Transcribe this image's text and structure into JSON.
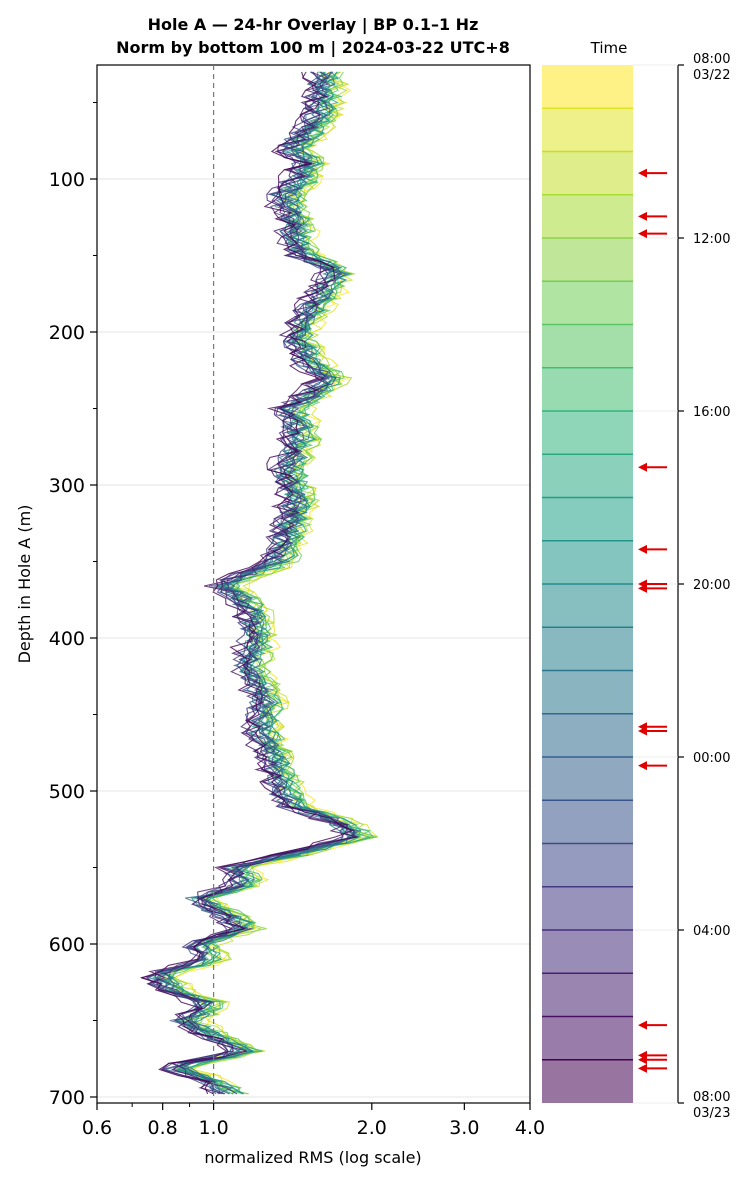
{
  "chart_data": {
    "type": "line",
    "title_line1": "Hole A — 24-hr Overlay  |  BP 0.1–1 Hz",
    "title_line2": "Norm by bottom 100 m  |  2024-03-22 UTC+8",
    "xlabel": "normalized RMS  (log scale)",
    "ylabel": "Depth in Hole A (m)",
    "x_scale": "log",
    "xlim": [
      0.6,
      4.0
    ],
    "ylim": [
      705,
      25
    ],
    "x_ticks": [
      0.6,
      0.8,
      1.0,
      2.0,
      3.0,
      4.0
    ],
    "x_tick_labels": [
      "0.6",
      "0.8",
      "1.0",
      "2.0",
      "3.0",
      "4.0"
    ],
    "y_ticks": [
      100,
      200,
      300,
      400,
      500,
      600,
      700
    ],
    "y_tick_labels": [
      "100",
      "200",
      "300",
      "400",
      "500",
      "600",
      "700"
    ],
    "reference_line_x": 1.0,
    "grid": "horizontal",
    "series_count": 24,
    "colormap": "viridis (dark = latest hours, yellow = earliest)",
    "depth_profile": [
      {
        "depth": 30,
        "rms": 1.55
      },
      {
        "depth": 50,
        "rms": 1.55
      },
      {
        "depth": 70,
        "rms": 1.45
      },
      {
        "depth": 80,
        "rms": 1.35
      },
      {
        "depth": 90,
        "rms": 1.45
      },
      {
        "depth": 100,
        "rms": 1.4
      },
      {
        "depth": 110,
        "rms": 1.32
      },
      {
        "depth": 120,
        "rms": 1.33
      },
      {
        "depth": 130,
        "rms": 1.38
      },
      {
        "depth": 140,
        "rms": 1.36
      },
      {
        "depth": 150,
        "rms": 1.42
      },
      {
        "depth": 160,
        "rms": 1.65
      },
      {
        "depth": 180,
        "rms": 1.5
      },
      {
        "depth": 200,
        "rms": 1.38
      },
      {
        "depth": 220,
        "rms": 1.45
      },
      {
        "depth": 230,
        "rms": 1.6
      },
      {
        "depth": 250,
        "rms": 1.35
      },
      {
        "depth": 270,
        "rms": 1.4
      },
      {
        "depth": 290,
        "rms": 1.32
      },
      {
        "depth": 310,
        "rms": 1.38
      },
      {
        "depth": 330,
        "rms": 1.33
      },
      {
        "depth": 350,
        "rms": 1.28
      },
      {
        "depth": 365,
        "rms": 1.0
      },
      {
        "depth": 380,
        "rms": 1.12
      },
      {
        "depth": 400,
        "rms": 1.15
      },
      {
        "depth": 420,
        "rms": 1.12
      },
      {
        "depth": 440,
        "rms": 1.2
      },
      {
        "depth": 460,
        "rms": 1.18
      },
      {
        "depth": 480,
        "rms": 1.25
      },
      {
        "depth": 500,
        "rms": 1.3
      },
      {
        "depth": 510,
        "rms": 1.35
      },
      {
        "depth": 520,
        "rms": 1.65
      },
      {
        "depth": 530,
        "rms": 1.8
      },
      {
        "depth": 540,
        "rms": 1.4
      },
      {
        "depth": 550,
        "rms": 1.05
      },
      {
        "depth": 560,
        "rms": 1.1
      },
      {
        "depth": 570,
        "rms": 0.9
      },
      {
        "depth": 580,
        "rms": 1.0
      },
      {
        "depth": 590,
        "rms": 1.1
      },
      {
        "depth": 600,
        "rms": 0.9
      },
      {
        "depth": 610,
        "rms": 0.95
      },
      {
        "depth": 620,
        "rms": 0.75
      },
      {
        "depth": 630,
        "rms": 0.8
      },
      {
        "depth": 640,
        "rms": 0.95
      },
      {
        "depth": 650,
        "rms": 0.85
      },
      {
        "depth": 660,
        "rms": 0.95
      },
      {
        "depth": 670,
        "rms": 1.1
      },
      {
        "depth": 680,
        "rms": 0.8
      },
      {
        "depth": 690,
        "rms": 0.95
      },
      {
        "depth": 700,
        "rms": 1.05
      }
    ],
    "colorbar": {
      "label": "Time",
      "n_bands": 24,
      "ticks": [
        "08:00\n03/22",
        "12:00",
        "16:00",
        "20:00",
        "00:00",
        "04:00",
        "08:00\n03/23"
      ],
      "tick_hours": [
        0,
        4,
        8,
        12,
        16,
        20,
        24
      ],
      "arrow_hours": [
        2.5,
        3.5,
        3.9,
        9.3,
        11.2,
        12.0,
        12.1,
        15.3,
        15.4,
        16.2,
        22.2,
        22.9,
        23.0,
        23.2
      ]
    }
  }
}
